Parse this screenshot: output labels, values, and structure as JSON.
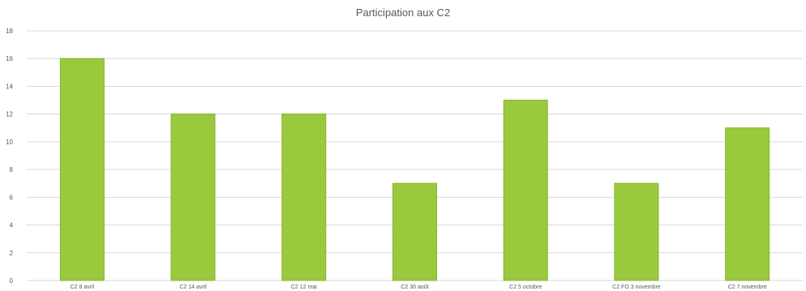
{
  "chart_data": {
    "type": "bar",
    "title": "Participation aux C2",
    "categories": [
      "C2 8 avril",
      "C2 14 avril",
      "C2 12 mai",
      "C2 30 août",
      "C2 5 octobre",
      "C2 FO 3 novembre",
      "C2 7 novembre"
    ],
    "series": [
      {
        "values": [
          16,
          12,
          12,
          7,
          13,
          7,
          11
        ]
      }
    ],
    "xlabel": "",
    "ylabel": "",
    "ylim": [
      0,
      18
    ],
    "yticks": [
      0,
      2,
      4,
      6,
      8,
      10,
      12,
      14,
      16,
      18
    ],
    "grid": true,
    "legend": "none",
    "colors": {
      "bar": "#99c93c",
      "bar_edge": "#86b52f",
      "grid": "#d9d9d9",
      "text": "#595959"
    }
  }
}
